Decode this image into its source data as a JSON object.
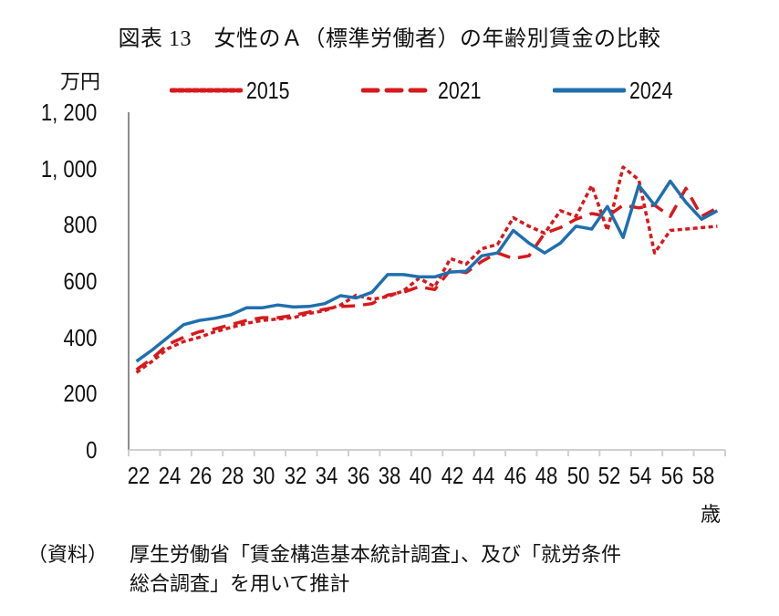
{
  "title": "図表 13　女性のＡ（標準労働者）の年齢別賃金の比較",
  "unit_label": "万円",
  "xlabel": "歳",
  "source": {
    "prefix": "（資料）",
    "line1": "厚生労働省「賃金構造基本統計調査」、及び「就労条件",
    "line2": "総合調査」を用いて推計"
  },
  "colors": {
    "series_2015": "#D7191C",
    "series_2021": "#D7191C",
    "series_2024": "#1F6FAE",
    "axis": "#8c8c8c"
  },
  "legend": [
    {
      "label": "2015",
      "style": "dotted",
      "color": "#D7191C"
    },
    {
      "label": "2021",
      "style": "dashed",
      "color": "#D7191C"
    },
    {
      "label": "2024",
      "style": "solid",
      "color": "#1F6FAE"
    }
  ],
  "y_ticks": [
    "1, 200",
    "1, 000",
    "800",
    "600",
    "400",
    "200",
    "0"
  ],
  "x_ticks": [
    "22",
    "24",
    "26",
    "28",
    "30",
    "32",
    "34",
    "36",
    "38",
    "40",
    "42",
    "44",
    "46",
    "48",
    "50",
    "52",
    "54",
    "56",
    "58"
  ],
  "chart_data": {
    "type": "line",
    "title": "図表 13　女性のＡ（標準労働者）の年齢別賃金の比較",
    "xlabel": "歳",
    "ylabel": "万円",
    "ylim": [
      0,
      1200
    ],
    "y_ticks": [
      0,
      200,
      400,
      600,
      800,
      1000,
      1200
    ],
    "grid": false,
    "legend_position": "top",
    "x": [
      22,
      23,
      24,
      25,
      26,
      27,
      28,
      29,
      30,
      31,
      32,
      33,
      34,
      35,
      36,
      37,
      38,
      39,
      40,
      41,
      42,
      43,
      44,
      45,
      46,
      47,
      48,
      49,
      50,
      51,
      52,
      53,
      54,
      55,
      56,
      57,
      58,
      59
    ],
    "series": [
      {
        "name": "2015",
        "style": "dotted",
        "color": "#D7191C",
        "values": [
          275,
          315,
          360,
          385,
          400,
          420,
          435,
          450,
          460,
          465,
          470,
          485,
          495,
          515,
          550,
          535,
          545,
          565,
          610,
          580,
          680,
          660,
          715,
          730,
          825,
          795,
          770,
          850,
          830,
          940,
          780,
          1005,
          960,
          700,
          780,
          785,
          790,
          795
        ]
      },
      {
        "name": "2021",
        "style": "dashed",
        "color": "#D7191C",
        "values": [
          285,
          325,
          375,
          400,
          420,
          430,
          445,
          460,
          470,
          470,
          478,
          490,
          500,
          510,
          512,
          520,
          550,
          560,
          580,
          570,
          640,
          630,
          670,
          700,
          680,
          690,
          770,
          790,
          820,
          840,
          830,
          870,
          860,
          870,
          830,
          930,
          830,
          860
        ]
      },
      {
        "name": "2024",
        "style": "solid",
        "color": "#1F6FAE",
        "values": [
          315,
          355,
          400,
          445,
          460,
          468,
          480,
          505,
          505,
          515,
          508,
          510,
          520,
          548,
          540,
          560,
          623,
          623,
          615,
          615,
          632,
          635,
          690,
          700,
          780,
          735,
          700,
          735,
          795,
          785,
          865,
          755,
          940,
          870,
          955,
          880,
          820,
          850
        ]
      }
    ]
  }
}
